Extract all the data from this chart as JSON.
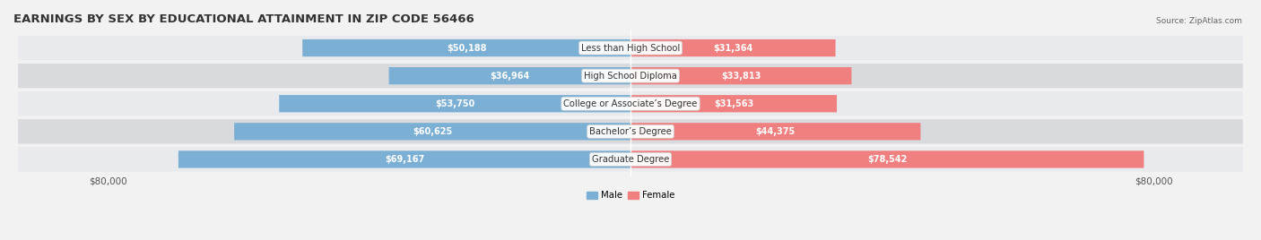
{
  "title": "EARNINGS BY SEX BY EDUCATIONAL ATTAINMENT IN ZIP CODE 56466",
  "source": "Source: ZipAtlas.com",
  "categories": [
    "Less than High School",
    "High School Diploma",
    "College or Associate’s Degree",
    "Bachelor’s Degree",
    "Graduate Degree"
  ],
  "male_values": [
    50188,
    36964,
    53750,
    60625,
    69167
  ],
  "female_values": [
    31364,
    33813,
    31563,
    44375,
    78542
  ],
  "male_color": "#7bafd4",
  "female_color": "#f08080",
  "male_color_dark": "#6a9ec3",
  "female_color_dark": "#e06070",
  "max_value": 80000,
  "bar_height": 0.62,
  "row_bg_light": "#e8eaed",
  "row_bg_dark": "#d8dadd",
  "label_fontsize": 7.0,
  "title_fontsize": 9.5,
  "source_fontsize": 6.5,
  "axis_label_fontsize": 7.5,
  "fig_bg": "#f2f2f2"
}
